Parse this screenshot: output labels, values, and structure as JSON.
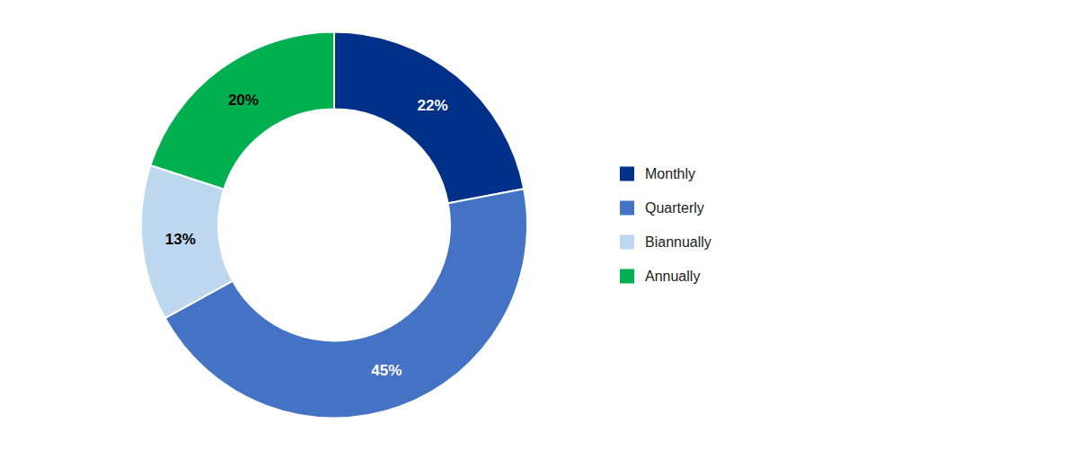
{
  "chart_data": {
    "type": "donut",
    "categories": [
      "Monthly",
      "Quarterly",
      "Biannually",
      "Annually"
    ],
    "values": [
      22,
      45,
      13,
      20
    ],
    "value_labels": [
      "22%",
      "45%",
      "13%",
      "20%"
    ],
    "colors": [
      "#003087",
      "#4472C4",
      "#BDD7EE",
      "#00B050"
    ],
    "data_labels": true,
    "legend": "right"
  }
}
